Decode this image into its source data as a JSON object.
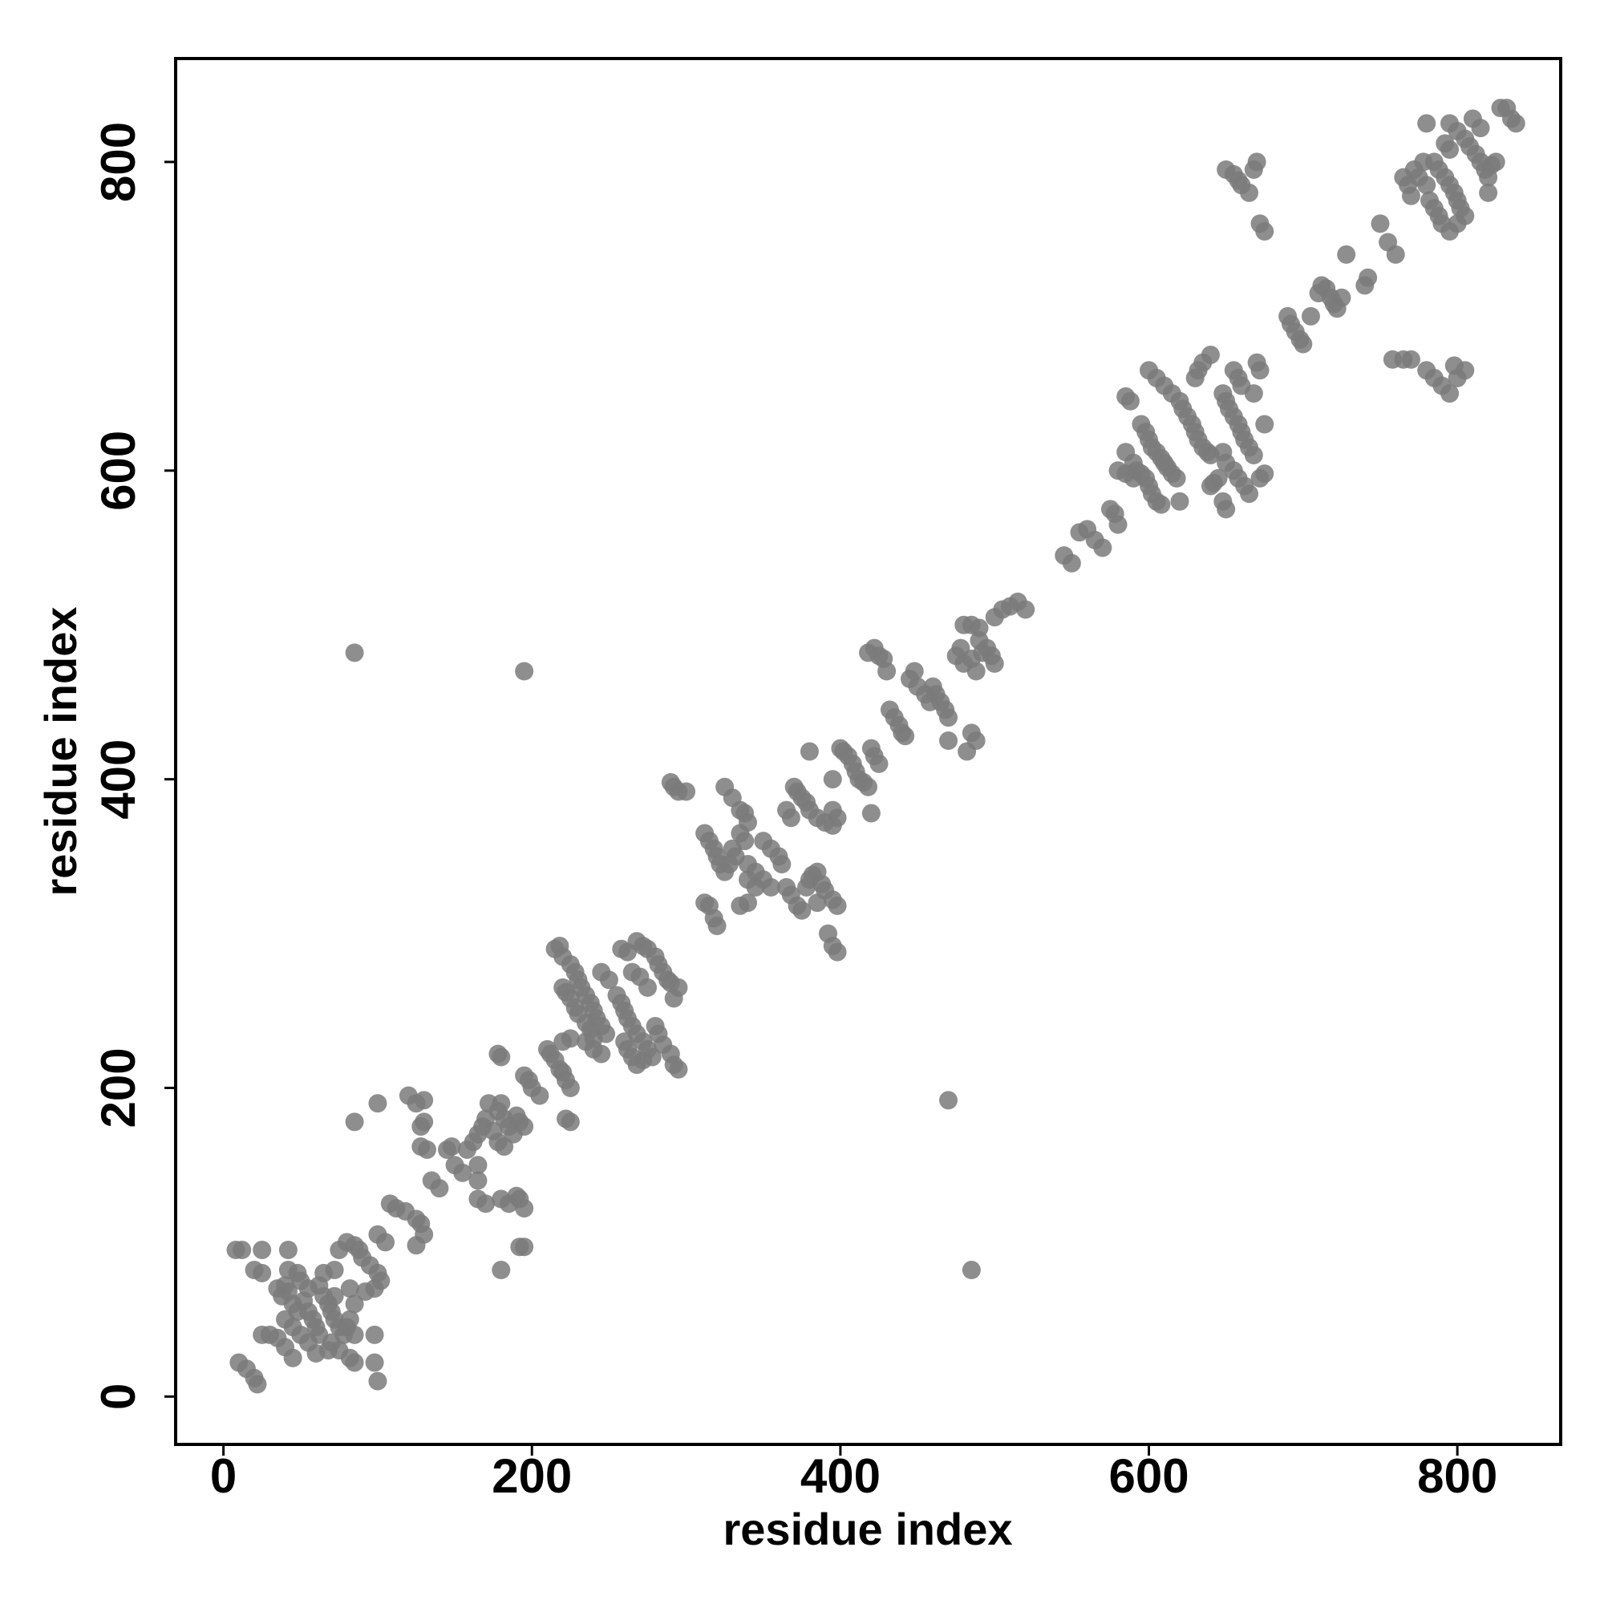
{
  "chart_data": {
    "type": "scatter",
    "x_label": "residue index",
    "y_label": "residue index",
    "xlim": [
      -31,
      867
    ],
    "ylim": [
      -31,
      867
    ],
    "xticks": [
      0,
      200,
      400,
      600,
      800
    ],
    "yticks": [
      0,
      200,
      400,
      600,
      800
    ],
    "color": "#7a7a7a",
    "x": [
      10,
      15,
      20,
      22,
      8,
      12,
      25,
      20,
      25,
      25,
      35,
      38,
      40,
      42,
      45,
      48,
      40,
      45,
      35,
      40,
      42,
      42,
      48,
      50,
      55,
      52,
      55,
      58,
      60,
      62,
      65,
      68,
      70,
      72,
      75,
      78,
      70,
      75,
      62,
      65,
      72,
      75,
      80,
      85,
      88,
      90,
      95,
      100,
      102,
      98,
      92,
      85,
      82,
      80,
      85,
      82,
      85,
      98,
      100,
      98,
      60,
      50,
      45,
      30,
      55,
      68,
      72,
      82,
      100,
      100,
      105,
      108,
      112,
      118,
      125,
      128,
      130,
      125,
      120,
      125,
      130,
      128,
      130,
      128,
      132,
      135,
      140,
      145,
      148,
      150,
      155,
      158,
      162,
      165,
      168,
      170,
      172,
      165,
      165,
      165,
      170,
      175,
      178,
      180,
      182,
      185,
      188,
      190,
      192,
      195,
      178,
      182,
      180,
      178,
      180,
      180,
      185,
      190,
      192,
      195,
      192,
      195,
      85,
      195,
      85,
      195,
      198,
      200,
      205,
      210,
      212,
      215,
      218,
      220,
      222,
      225,
      222,
      225,
      220,
      225,
      215,
      218,
      220,
      225,
      228,
      230,
      232,
      235,
      238,
      240,
      242,
      245,
      248,
      220,
      222,
      225,
      228,
      230,
      235,
      238,
      240,
      245,
      250,
      255,
      258,
      260,
      262,
      265,
      268,
      272,
      275,
      278,
      260,
      262,
      265,
      268,
      272,
      258,
      262,
      268,
      272,
      275,
      280,
      282,
      285,
      288,
      290,
      295,
      292,
      265,
      270,
      275,
      280,
      282,
      285,
      290,
      292,
      295,
      240,
      245,
      235,
      290,
      292,
      295,
      300,
      312,
      315,
      318,
      320,
      322,
      325,
      328,
      325,
      330,
      335,
      338,
      340,
      335,
      338,
      330,
      332,
      340,
      345,
      350,
      355,
      340,
      345,
      350,
      355,
      360,
      362,
      365,
      368,
      372,
      375,
      378,
      380,
      382,
      385,
      388,
      390,
      385,
      370,
      372,
      375,
      378,
      380,
      385,
      390,
      395,
      395,
      398,
      365,
      368,
      380,
      312,
      315,
      318,
      320,
      335,
      340,
      392,
      395,
      398,
      395,
      398,
      395,
      400,
      402,
      405,
      408,
      410,
      412,
      415,
      418,
      420,
      422,
      425,
      420,
      418,
      422,
      425,
      428,
      430,
      432,
      435,
      438,
      440,
      442,
      445,
      448,
      450,
      455,
      458,
      460,
      462,
      465,
      468,
      470,
      470,
      475,
      478,
      480,
      485,
      488,
      490,
      492,
      495,
      498,
      500,
      490,
      485,
      480,
      485,
      488,
      482,
      500,
      505,
      510,
      515,
      520,
      470,
      485,
      545,
      550,
      555,
      560,
      565,
      570,
      575,
      578,
      580,
      585,
      588,
      585,
      590,
      592,
      595,
      598,
      600,
      602,
      605,
      608,
      595,
      598,
      600,
      602,
      605,
      608,
      610,
      612,
      615,
      618,
      620,
      600,
      605,
      610,
      615,
      620,
      622,
      625,
      628,
      630,
      632,
      635,
      638,
      640,
      630,
      632,
      635,
      640,
      642,
      645,
      640,
      648,
      650,
      652,
      655,
      658,
      660,
      662,
      665,
      668,
      648,
      650,
      655,
      658,
      662,
      665,
      648,
      650,
      655,
      658,
      660,
      668,
      670,
      672,
      675,
      672,
      675,
      580,
      585,
      590,
      690,
      692,
      695,
      698,
      700,
      705,
      710,
      712,
      715,
      718,
      720,
      722,
      725,
      728,
      742,
      750,
      755,
      765,
      768,
      770,
      772,
      775,
      778,
      780,
      782,
      785,
      788,
      790,
      785,
      788,
      792,
      795,
      798,
      800,
      802,
      795,
      800,
      805,
      780,
      795,
      800,
      805,
      808,
      812,
      815,
      818,
      820,
      822,
      825,
      820,
      828,
      832,
      835,
      838,
      810,
      815,
      792,
      795,
      758,
      765,
      770,
      780,
      785,
      790,
      795,
      800,
      805,
      798,
      650,
      655,
      658,
      660,
      665,
      668,
      670,
      672,
      675,
      740,
      760
    ],
    "values": [
      22,
      18,
      12,
      8,
      95,
      95,
      95,
      82,
      80,
      40,
      70,
      65,
      72,
      68,
      60,
      55,
      50,
      45,
      38,
      32,
      95,
      82,
      80,
      75,
      70,
      62,
      55,
      50,
      45,
      40,
      65,
      60,
      55,
      50,
      45,
      40,
      35,
      30,
      72,
      80,
      82,
      95,
      100,
      98,
      95,
      90,
      85,
      80,
      75,
      70,
      68,
      60,
      50,
      45,
      40,
      25,
      22,
      22,
      10,
      40,
      28,
      40,
      25,
      40,
      35,
      30,
      65,
      70,
      190,
      105,
      100,
      125,
      122,
      120,
      115,
      112,
      105,
      98,
      195,
      190,
      192,
      175,
      178,
      162,
      160,
      140,
      135,
      160,
      162,
      150,
      145,
      160,
      165,
      170,
      175,
      180,
      190,
      150,
      140,
      128,
      125,
      172,
      185,
      190,
      180,
      175,
      170,
      182,
      178,
      175,
      165,
      162,
      220,
      222,
      82,
      128,
      125,
      130,
      128,
      122,
      97,
      97,
      482,
      470,
      178,
      208,
      205,
      200,
      195,
      225,
      222,
      218,
      212,
      210,
      205,
      200,
      180,
      178,
      230,
      232,
      290,
      292,
      285,
      280,
      275,
      270,
      265,
      260,
      255,
      250,
      245,
      240,
      235,
      265,
      262,
      258,
      252,
      248,
      242,
      238,
      232,
      275,
      270,
      260,
      255,
      250,
      245,
      240,
      235,
      230,
      225,
      220,
      230,
      225,
      220,
      215,
      218,
      290,
      288,
      295,
      292,
      290,
      285,
      280,
      275,
      270,
      268,
      265,
      258,
      275,
      272,
      265,
      240,
      235,
      228,
      222,
      215,
      212,
      225,
      222,
      230,
      398,
      395,
      392,
      392,
      365,
      360,
      355,
      350,
      345,
      340,
      345,
      395,
      388,
      380,
      378,
      372,
      365,
      360,
      355,
      350,
      345,
      340,
      335,
      330,
      335,
      330,
      360,
      355,
      350,
      345,
      330,
      325,
      318,
      315,
      330,
      335,
      338,
      340,
      332,
      328,
      320,
      395,
      392,
      388,
      385,
      380,
      375,
      372,
      370,
      380,
      375,
      380,
      375,
      418,
      320,
      318,
      310,
      305,
      318,
      320,
      300,
      292,
      288,
      322,
      318,
      400,
      420,
      418,
      415,
      410,
      405,
      400,
      398,
      395,
      420,
      415,
      410,
      378,
      482,
      485,
      480,
      478,
      470,
      445,
      440,
      435,
      430,
      428,
      465,
      470,
      460,
      455,
      450,
      460,
      455,
      450,
      445,
      440,
      425,
      480,
      485,
      475,
      478,
      470,
      490,
      482,
      485,
      480,
      475,
      498,
      500,
      500,
      430,
      425,
      418,
      505,
      510,
      512,
      515,
      510,
      192,
      82,
      545,
      540,
      560,
      562,
      555,
      550,
      575,
      572,
      565,
      648,
      645,
      612,
      605,
      600,
      598,
      595,
      590,
      585,
      580,
      578,
      630,
      625,
      620,
      615,
      612,
      608,
      605,
      602,
      598,
      595,
      580,
      665,
      660,
      655,
      650,
      645,
      640,
      635,
      630,
      625,
      620,
      615,
      612,
      610,
      660,
      665,
      670,
      590,
      592,
      595,
      675,
      650,
      645,
      640,
      635,
      630,
      625,
      620,
      615,
      610,
      612,
      605,
      600,
      595,
      590,
      585,
      580,
      575,
      665,
      660,
      655,
      650,
      670,
      665,
      630,
      595,
      598,
      600,
      598,
      595,
      700,
      695,
      690,
      685,
      682,
      700,
      715,
      720,
      718,
      712,
      708,
      705,
      712,
      740,
      725,
      760,
      748,
      790,
      785,
      778,
      795,
      790,
      800,
      785,
      775,
      770,
      765,
      760,
      800,
      795,
      790,
      785,
      780,
      775,
      770,
      755,
      760,
      765,
      825,
      825,
      820,
      815,
      810,
      805,
      800,
      795,
      790,
      798,
      800,
      780,
      835,
      835,
      828,
      825,
      828,
      822,
      812,
      808,
      672,
      672,
      672,
      665,
      660,
      655,
      650,
      660,
      665,
      668,
      795,
      792,
      788,
      785,
      780,
      795,
      800,
      760,
      755,
      720,
      740
    ]
  }
}
